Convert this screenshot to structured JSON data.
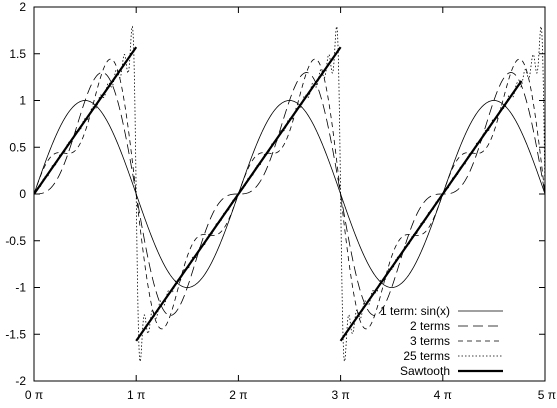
{
  "chart_data": {
    "type": "line",
    "title": "",
    "xlabel": "",
    "ylabel": "",
    "xlim": [
      0,
      5
    ],
    "ylim": [
      -2,
      2
    ],
    "x_unit": "π",
    "x_ticks": [
      {
        "value": 0,
        "label": "0 π"
      },
      {
        "value": 1,
        "label": "1 π"
      },
      {
        "value": 2,
        "label": "2 π"
      },
      {
        "value": 3,
        "label": "3 π"
      },
      {
        "value": 4,
        "label": "4 π"
      },
      {
        "value": 5,
        "label": "5 π"
      }
    ],
    "y_ticks": [
      {
        "value": 2,
        "label": "2"
      },
      {
        "value": 1.5,
        "label": "1.5"
      },
      {
        "value": 1,
        "label": "1"
      },
      {
        "value": 0.5,
        "label": "0.5"
      },
      {
        "value": 0,
        "label": "0"
      },
      {
        "value": -0.5,
        "label": "-0.5"
      },
      {
        "value": -1,
        "label": "-1"
      },
      {
        "value": -1.5,
        "label": "-1.5"
      },
      {
        "value": -2,
        "label": "-2"
      }
    ],
    "grid": false,
    "legend_position": "bottom-right",
    "series": [
      {
        "name": "1 term: sin(x)",
        "terms": 1,
        "style": "thin-solid"
      },
      {
        "name": "2 terms",
        "terms": 2,
        "style": "long-dash"
      },
      {
        "name": "3 terms",
        "terms": 3,
        "style": "short-dash"
      },
      {
        "name": "25 terms",
        "terms": 25,
        "style": "dotted"
      },
      {
        "name": "Sawtooth",
        "style": "thick-solid",
        "segments": [
          {
            "x": [
              0,
              1
            ],
            "y": [
              0,
              1.5708
            ]
          },
          {
            "x": [
              1,
              3
            ],
            "y": [
              -1.5708,
              1.5708
            ]
          },
          {
            "x": [
              3,
              4.77
            ],
            "y": [
              -1.5708,
              1.2095
            ]
          }
        ]
      }
    ]
  }
}
